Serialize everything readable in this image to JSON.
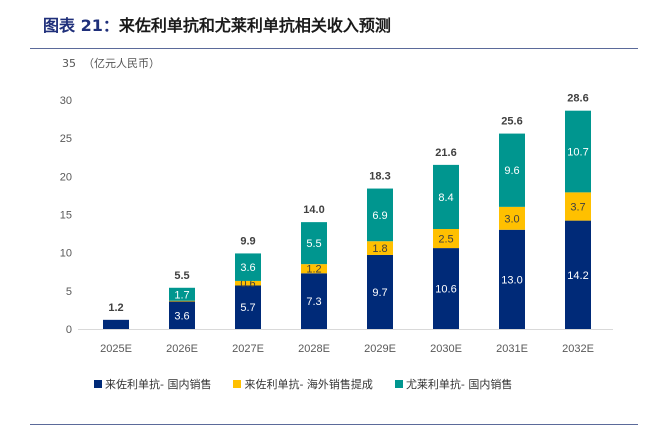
{
  "header": {
    "prefix": "图表 21：",
    "title": "来佐利单抗和尤莱利单抗相关收入预测"
  },
  "chart_data": {
    "type": "bar",
    "stacked": true,
    "title": "来佐利单抗和尤莱利单抗相关收入预测",
    "ylabel": "（亿元人民币）",
    "xlabel": "",
    "ylim": [
      0,
      35
    ],
    "yticks": [
      0,
      5,
      10,
      15,
      20,
      25,
      30,
      35
    ],
    "grid": false,
    "legend_position": "bottom",
    "categories": [
      "2025E",
      "2026E",
      "2027E",
      "2028E",
      "2029E",
      "2030E",
      "2031E",
      "2032E"
    ],
    "series": [
      {
        "name": "来佐利单抗- 国内销售",
        "color": "#002a78",
        "label_color": "#ffffff",
        "values": [
          1.2,
          3.6,
          5.7,
          7.3,
          9.7,
          10.6,
          13.0,
          14.2
        ],
        "labels": [
          null,
          "3.6",
          "5.7",
          "7.3",
          "9.7",
          "10.6",
          "13.0",
          "14.2"
        ]
      },
      {
        "name": "来佐利单抗- 海外销售提成",
        "color": "#ffc000",
        "label_color": "#404040",
        "values": [
          0,
          0.1,
          0.6,
          1.2,
          1.8,
          2.5,
          3.0,
          3.7
        ],
        "labels": [
          null,
          null,
          "0.6",
          "1.2",
          "1.8",
          "2.5",
          "3.0",
          "3.7"
        ]
      },
      {
        "name": "尤莱利单抗- 国内销售",
        "color": "#00968f",
        "label_color": "#ffffff",
        "values": [
          0,
          1.7,
          3.6,
          5.5,
          6.9,
          8.4,
          9.6,
          10.7
        ],
        "labels": [
          null,
          "1.7",
          "3.6",
          "5.5",
          "6.9",
          "8.4",
          "9.6",
          "10.7"
        ]
      }
    ],
    "totals": [
      "1.2",
      "5.5",
      "9.9",
      "14.0",
      "18.3",
      "21.6",
      "25.6",
      "28.6"
    ]
  },
  "legend": [
    {
      "label": "来佐利单抗- 国内销售",
      "color": "#002a78"
    },
    {
      "label": "来佐利单抗- 海外销售提成",
      "color": "#ffc000"
    },
    {
      "label": "尤莱利单抗- 国内销售",
      "color": "#00968f"
    }
  ]
}
